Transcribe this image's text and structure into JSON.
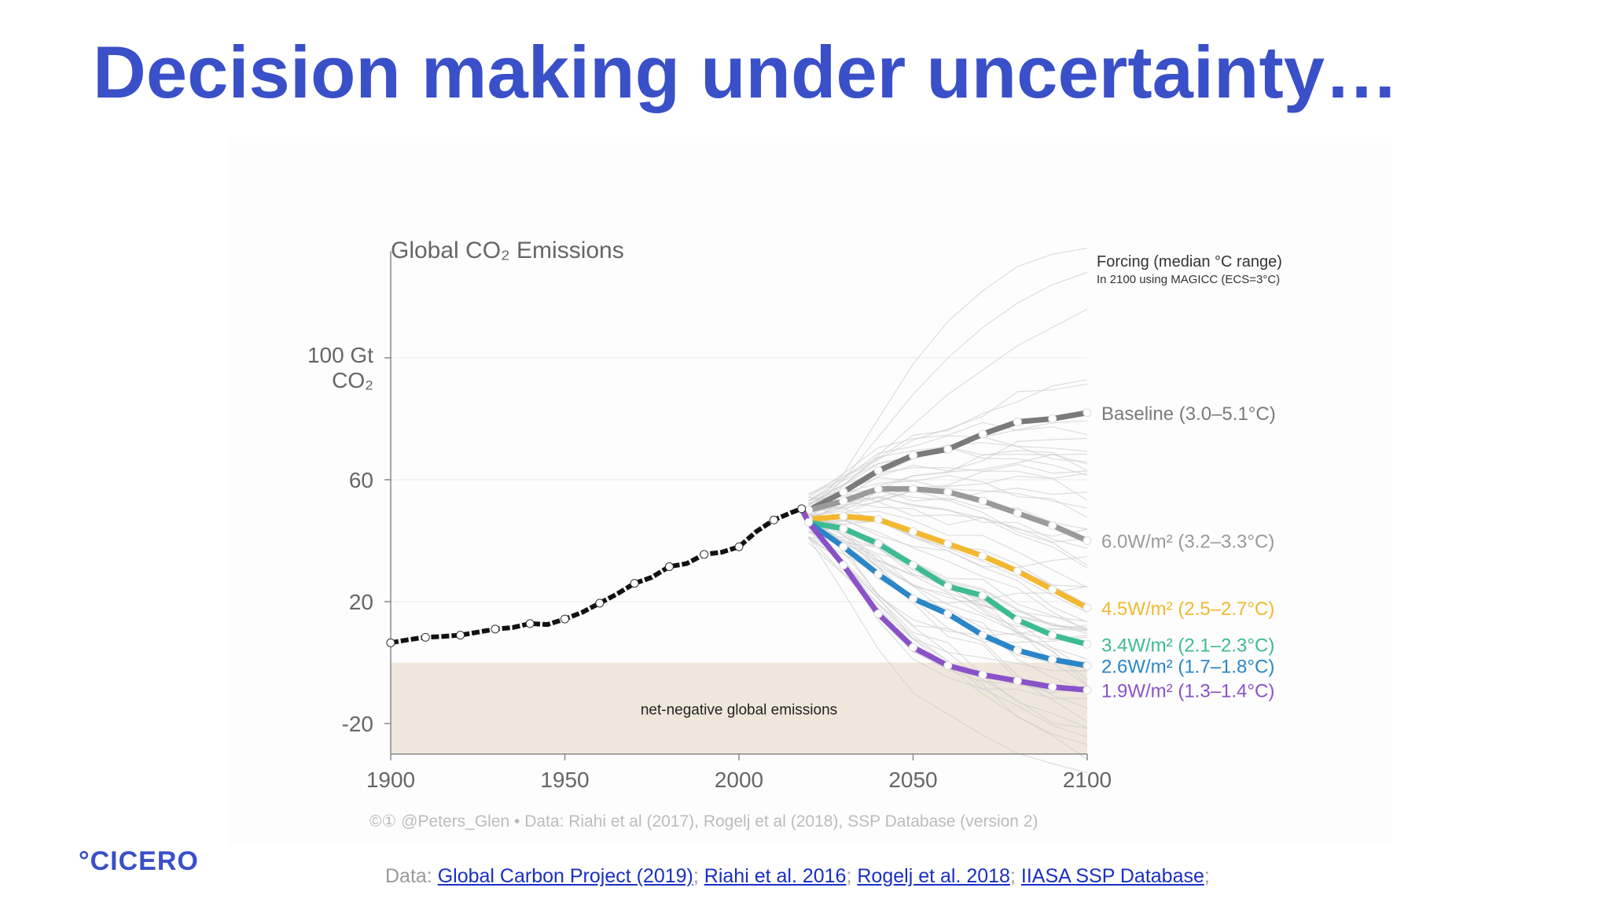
{
  "slide": {
    "title": "Decision making under uncertainty…",
    "logo": "°CICERO",
    "sources_prefix": "Data: ",
    "sources": [
      {
        "label": "Global Carbon Project (2019)",
        "sep": "; "
      },
      {
        "label": "Riahi et al. 2016",
        "sep": "; "
      },
      {
        "label": "Rogelj et al. 2018",
        "sep": "; "
      },
      {
        "label": "IIASA SSP Database",
        "sep": ";"
      }
    ]
  },
  "chart_data": {
    "type": "line",
    "title": "Global CO₂ Emissions",
    "ylabel_line1": "100 Gt",
    "ylabel_line2": "CO₂",
    "xlim": [
      1900,
      2100
    ],
    "ylim": [
      -30,
      140
    ],
    "x_ticks": [
      1900,
      1950,
      2000,
      2050,
      2100
    ],
    "y_ticks": [
      -20,
      20,
      60
    ],
    "y_tick_labels": [
      "-20",
      "20",
      "60"
    ],
    "negative_region_label": "net-negative global emissions",
    "legend_title": "Forcing (median °C range)",
    "legend_subtitle": "In 2100 using MAGICC (ECS=3°C)",
    "credit": "©① @Peters_Glen  •  Data: Riahi et al (2017), Rogelj et al (2018), SSP Database (version 2)",
    "colors": {
      "historical": "#111111",
      "baseline": "#7a7a7a",
      "w60": "#9a9a9a",
      "w45": "#f2b830",
      "w34": "#3dbb94",
      "w26": "#2a86c6",
      "w19": "#8a52c8",
      "negative_fill": "#efe7dc",
      "ensemble": "#cfcfcf"
    },
    "historical": {
      "x": [
        1900,
        1905,
        1910,
        1915,
        1920,
        1925,
        1930,
        1935,
        1940,
        1945,
        1950,
        1955,
        1960,
        1965,
        1970,
        1975,
        1980,
        1985,
        1990,
        1995,
        2000,
        2005,
        2010,
        2015,
        2018
      ],
      "y": [
        6.5,
        7.5,
        8.3,
        8.6,
        9.0,
        10.0,
        11.0,
        11.5,
        12.8,
        12.5,
        14.3,
        16.5,
        19.5,
        22.5,
        26.0,
        28.0,
        31.5,
        32.5,
        35.5,
        36.2,
        38.0,
        43.0,
        46.8,
        49.2,
        50.5
      ]
    },
    "scenarios": [
      {
        "key": "baseline",
        "label": "Baseline (3.0–5.1°C)",
        "x": [
          2020,
          2030,
          2040,
          2050,
          2060,
          2070,
          2080,
          2090,
          2100
        ],
        "y": [
          50,
          56,
          63,
          68,
          70,
          75,
          79,
          80,
          82
        ]
      },
      {
        "key": "w60",
        "label": "6.0W/m² (3.2–3.3°C)",
        "x": [
          2020,
          2030,
          2040,
          2050,
          2060,
          2070,
          2080,
          2090,
          2100
        ],
        "y": [
          50,
          53,
          57,
          57,
          56,
          53,
          49,
          45,
          40
        ]
      },
      {
        "key": "w45",
        "label": "4.5W/m² (2.5–2.7°C)",
        "x": [
          2020,
          2030,
          2040,
          2050,
          2060,
          2070,
          2080,
          2090,
          2100
        ],
        "y": [
          47,
          48,
          47,
          43,
          39,
          35,
          30,
          24,
          18
        ]
      },
      {
        "key": "w34",
        "label": "3.4W/m² (2.1–2.3°C)",
        "x": [
          2020,
          2030,
          2040,
          2050,
          2060,
          2070,
          2080,
          2090,
          2100
        ],
        "y": [
          46,
          44,
          39,
          32,
          25,
          22,
          14,
          9,
          6
        ]
      },
      {
        "key": "w26",
        "label": "2.6W/m² (1.7–1.8°C)",
        "x": [
          2020,
          2030,
          2040,
          2050,
          2060,
          2070,
          2080,
          2090,
          2100
        ],
        "y": [
          46,
          38,
          29,
          21,
          16,
          9,
          4,
          1,
          -1
        ]
      },
      {
        "key": "w19",
        "label": "1.9W/m² (1.3–1.4°C)",
        "x": [
          2020,
          2030,
          2040,
          2050,
          2060,
          2070,
          2080,
          2090,
          2100
        ],
        "y": [
          46,
          32,
          16,
          5,
          -1,
          -4,
          -6,
          -8,
          -9
        ]
      }
    ]
  }
}
